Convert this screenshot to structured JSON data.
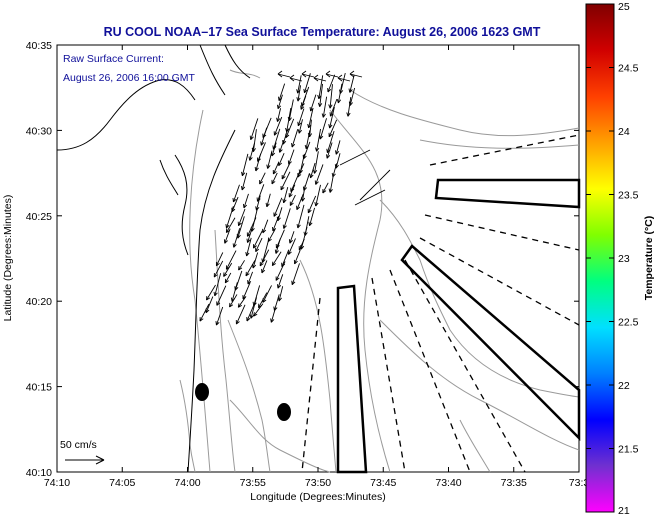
{
  "title": "RU COOL  NOAA–17  Sea Surface Temperature:  August 26, 2006 1623 GMT",
  "annotation": {
    "line1": "Raw Surface Current:",
    "line2": "August 26, 2006 16:00 GMT"
  },
  "scale_label": "50 cm/s",
  "x_axis": {
    "label": "Longitude (Degrees:Minutes)",
    "ticks": [
      "74:10",
      "74:05",
      "74:00",
      "73:55",
      "73:50",
      "73:45",
      "73:40",
      "73:35",
      "73:3"
    ]
  },
  "y_axis": {
    "label": "Latitude (Degrees:Minutes)",
    "ticks": [
      "40:35",
      "40:30",
      "40:25",
      "40:20",
      "40:15",
      "40:10"
    ]
  },
  "colorbar": {
    "label": "Temperature (°C)",
    "ticks": [
      "25",
      "24.5",
      "24",
      "23.5",
      "23",
      "22.5",
      "22",
      "21.5",
      "21"
    ],
    "colors": [
      "#ff00ff",
      "#7030d0",
      "#0000ff",
      "#0080ff",
      "#00e0ff",
      "#00ff80",
      "#80ff00",
      "#ffff00",
      "#ffa000",
      "#ff4000",
      "#d00000",
      "#800000"
    ]
  },
  "colors": {
    "title": "#10109a",
    "coast": "#000000",
    "bathymetry": "#9a9a9a",
    "vectors": "#000000"
  }
}
